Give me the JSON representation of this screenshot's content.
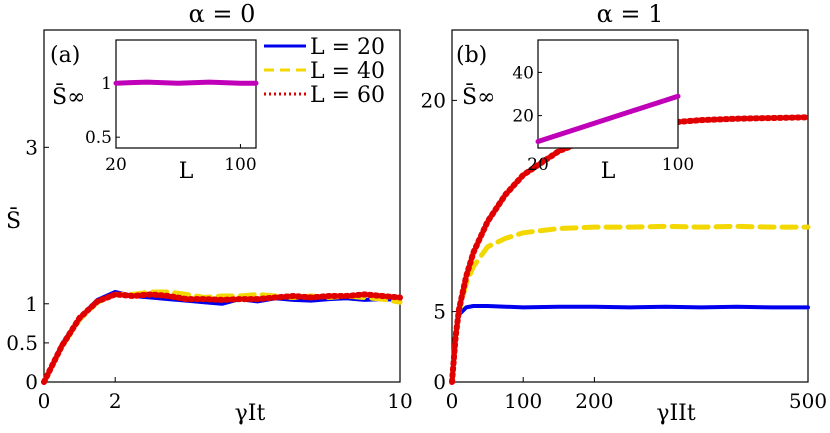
{
  "colors": {
    "L20": "#0000ee",
    "L40": "#f2d800",
    "L60": "#e00000",
    "inset": "#c000b8"
  },
  "chart_data": [
    {
      "id": "panel-a",
      "type": "line",
      "panel_label": "(a)",
      "title": "α = 0",
      "xlabel": "γIt",
      "ylabel": "S̄",
      "xlim": [
        0,
        10
      ],
      "ylim": [
        0,
        4.5
      ],
      "xticks": [
        "0",
        "2",
        "10"
      ],
      "yticks": [
        "0",
        "0.5",
        "1",
        "3"
      ],
      "legend": [
        {
          "label": "L = 20",
          "style": "solid"
        },
        {
          "label": "L = 40",
          "style": "dashed"
        },
        {
          "label": "L = 60",
          "style": "dotted"
        }
      ],
      "legend_position": "top-right",
      "series": [
        {
          "name": "L = 20",
          "x": [
            0,
            0.5,
            1,
            1.5,
            2,
            2.5,
            3,
            3.5,
            4,
            4.5,
            5,
            5.5,
            6,
            6.5,
            7,
            7.5,
            8,
            8.5,
            9,
            9.5,
            10
          ],
          "y": [
            0,
            0.48,
            0.82,
            1.05,
            1.15,
            1.1,
            1.08,
            1.06,
            1.04,
            1.02,
            1.0,
            1.06,
            1.03,
            1.07,
            1.05,
            1.04,
            1.06,
            1.07,
            1.05,
            1.06,
            1.05
          ]
        },
        {
          "name": "L = 40",
          "x": [
            0,
            0.5,
            1,
            1.5,
            2,
            2.5,
            3,
            3.5,
            4,
            4.5,
            5,
            5.5,
            6,
            6.5,
            7,
            7.5,
            8,
            8.5,
            9,
            9.5,
            10
          ],
          "y": [
            0,
            0.45,
            0.8,
            1.02,
            1.12,
            1.12,
            1.15,
            1.15,
            1.12,
            1.08,
            1.1,
            1.1,
            1.12,
            1.1,
            1.08,
            1.1,
            1.08,
            1.1,
            1.08,
            1.06,
            1.02
          ]
        },
        {
          "name": "L = 60",
          "x": [
            0,
            0.5,
            1,
            1.5,
            2,
            2.5,
            3,
            3.5,
            4,
            4.5,
            5,
            5.5,
            6,
            6.5,
            7,
            7.5,
            8,
            8.5,
            9,
            9.5,
            10
          ],
          "y": [
            0,
            0.46,
            0.82,
            1.03,
            1.12,
            1.1,
            1.12,
            1.1,
            1.06,
            1.06,
            1.05,
            1.06,
            1.06,
            1.08,
            1.1,
            1.08,
            1.1,
            1.1,
            1.12,
            1.1,
            1.08
          ]
        }
      ],
      "inset": {
        "type": "line",
        "xlabel": "L",
        "ylabel": "S̄∞",
        "xlim": [
          20,
          110
        ],
        "ylim": [
          0.4,
          1.4
        ],
        "xticks": [
          "20",
          "100"
        ],
        "yticks": [
          "0.5",
          "1"
        ],
        "x": [
          20,
          40,
          60,
          80,
          100,
          110
        ],
        "y": [
          1.0,
          1.01,
          1.0,
          1.01,
          1.0,
          1.0
        ]
      }
    },
    {
      "id": "panel-b",
      "type": "line",
      "panel_label": "(b)",
      "title": "α = 1",
      "xlabel": "γIIt",
      "ylabel": "",
      "xlim": [
        0,
        500
      ],
      "ylim": [
        0,
        25
      ],
      "xticks": [
        "0",
        "100",
        "200",
        "500"
      ],
      "yticks": [
        "0",
        "5",
        "20"
      ],
      "series": [
        {
          "name": "L = 20",
          "x": [
            0,
            5,
            10,
            20,
            30,
            50,
            100,
            150,
            200,
            250,
            300,
            350,
            400,
            450,
            500
          ],
          "y": [
            0,
            3.5,
            4.8,
            5.3,
            5.4,
            5.4,
            5.3,
            5.35,
            5.35,
            5.3,
            5.35,
            5.3,
            5.35,
            5.3,
            5.3
          ]
        },
        {
          "name": "L = 40",
          "x": [
            0,
            5,
            10,
            20,
            30,
            50,
            75,
            100,
            150,
            200,
            250,
            300,
            350,
            400,
            450,
            500
          ],
          "y": [
            0,
            3.2,
            5.0,
            7.0,
            8.2,
            9.6,
            10.2,
            10.6,
            10.9,
            11.0,
            11.0,
            11.05,
            11.0,
            11.05,
            11.0,
            11.0
          ]
        },
        {
          "name": "L = 60",
          "x": [
            0,
            5,
            10,
            20,
            30,
            50,
            75,
            100,
            150,
            200,
            250,
            300,
            350,
            400,
            450,
            500
          ],
          "y": [
            0,
            3.2,
            5.2,
            7.5,
            9.2,
            11.4,
            13.3,
            14.7,
            16.4,
            17.4,
            18.0,
            18.4,
            18.6,
            18.7,
            18.75,
            18.8
          ]
        }
      ],
      "inset": {
        "type": "line",
        "xlabel": "L",
        "ylabel": "S̄∞",
        "xlim": [
          20,
          100
        ],
        "ylim": [
          5,
          55
        ],
        "xticks": [
          "20",
          "100"
        ],
        "yticks": [
          "20",
          "40"
        ],
        "x": [
          20,
          100
        ],
        "y": [
          8,
          29
        ]
      }
    }
  ]
}
